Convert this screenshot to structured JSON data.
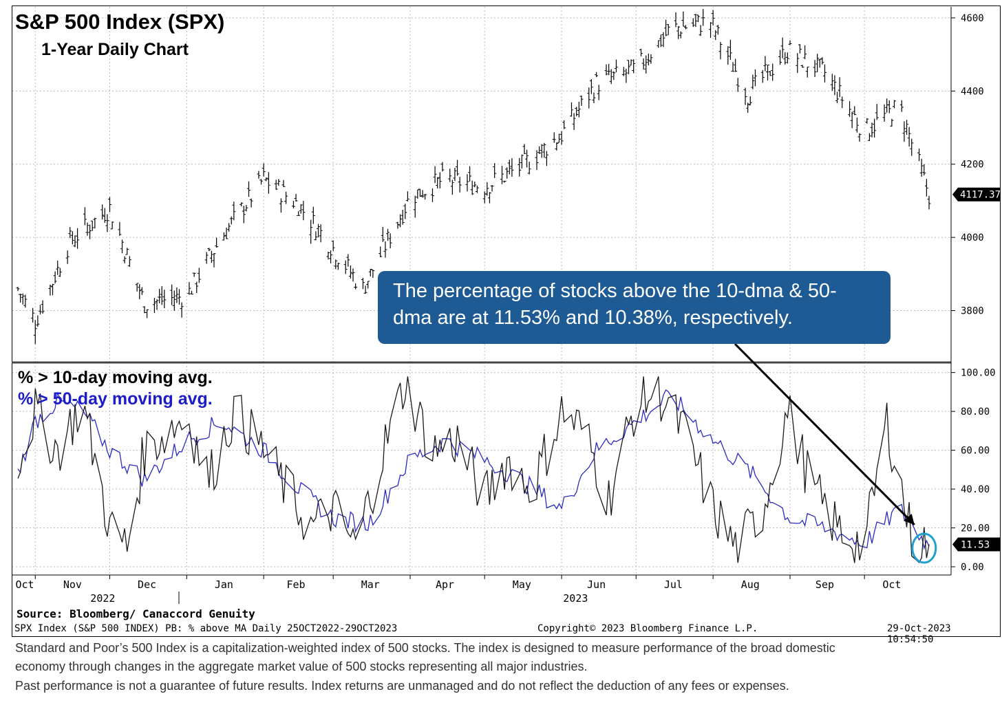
{
  "title": "S&P 500 Index (SPX)",
  "subtitle": "1-Year Daily Chart",
  "legend": {
    "ten_day": "% > 10-day moving avg.",
    "fifty_day": "% > 50-day moving avg."
  },
  "callout": "The percentage of stocks above the 10-dma & 50-dma are at 11.53% and 10.38%, respectively.",
  "source": "Source: Bloomberg/ Canaccord Genuity",
  "footer": {
    "left": "SPX Index (S&P 500 INDEX) PB: % above MA  Daily 25OCT2022-29OCT2023",
    "center": "Copyright© 2023 Bloomberg Finance L.P.",
    "right": "29-Oct-2023 10:54:50"
  },
  "disclaimer": [
    "Standard and Poor’s 500 Index is a capitalization-weighted index of 500 stocks. The index is designed to measure performance of the broad domestic",
    "economy through changes in the aggregate market value of 500 stocks representing all major industries.",
    "Past performance is not a guarantee of future results. Index returns are unmanaged and do not reflect the deduction of any fees or expenses."
  ],
  "colors": {
    "price": "#000000",
    "ten_day": "#1a1a1a",
    "fifty_day": "#2a2ac0",
    "callout_bg": "#1e5a94",
    "highlight_circle": "#1ea0d0"
  },
  "chart_data": [
    {
      "type": "line",
      "title": "S&P 500 Index (SPX)",
      "subtitle": "1-Year Daily Chart",
      "style": "ohlc bars",
      "x": [
        "2022-10-25",
        "2022-11-01",
        "2022-11-15",
        "2022-12-01",
        "2022-12-15",
        "2023-01-01",
        "2023-01-15",
        "2023-02-01",
        "2023-02-15",
        "2023-03-01",
        "2023-03-13",
        "2023-04-01",
        "2023-04-15",
        "2023-05-01",
        "2023-05-15",
        "2023-06-01",
        "2023-06-15",
        "2023-07-01",
        "2023-07-15",
        "2023-07-31",
        "2023-08-15",
        "2023-08-31",
        "2023-09-15",
        "2023-10-01",
        "2023-10-15",
        "2023-10-27"
      ],
      "y": [
        3860,
        3770,
        3990,
        4080,
        3820,
        3840,
        4000,
        4160,
        4090,
        3970,
        3860,
        4110,
        4160,
        4140,
        4190,
        4280,
        4420,
        4460,
        4570,
        4590,
        4390,
        4510,
        4450,
        4290,
        4360,
        4117.37
      ],
      "last_value": "4117.37",
      "ylim": [
        3660,
        4630
      ],
      "yticks": [
        3800,
        4000,
        4200,
        4400,
        4600
      ],
      "grid": true
    },
    {
      "type": "line",
      "series": [
        {
          "name": "% > 10-day moving avg.",
          "x": [
            "2022-10-25",
            "2022-11-01",
            "2022-11-10",
            "2022-11-20",
            "2022-12-01",
            "2022-12-08",
            "2022-12-15",
            "2023-01-01",
            "2023-01-10",
            "2023-01-20",
            "2023-02-01",
            "2023-02-10",
            "2023-02-20",
            "2023-03-01",
            "2023-03-10",
            "2023-03-20",
            "2023-03-30",
            "2023-04-10",
            "2023-04-20",
            "2023-05-01",
            "2023-05-10",
            "2023-05-20",
            "2023-06-01",
            "2023-06-10",
            "2023-06-20",
            "2023-07-01",
            "2023-07-10",
            "2023-07-20",
            "2023-08-01",
            "2023-08-10",
            "2023-08-20",
            "2023-08-31",
            "2023-09-10",
            "2023-09-20",
            "2023-10-01",
            "2023-10-10",
            "2023-10-20",
            "2023-10-27"
          ],
          "values": [
            55,
            80,
            60,
            85,
            20,
            10,
            60,
            78,
            45,
            80,
            60,
            40,
            20,
            30,
            10,
            55,
            95,
            60,
            65,
            35,
            55,
            40,
            80,
            70,
            35,
            85,
            90,
            70,
            30,
            10,
            25,
            80,
            40,
            20,
            10,
            75,
            15,
            11.53
          ],
          "last_value": "11.53"
        },
        {
          "name": "% > 50-day moving avg.",
          "x": [
            "2022-10-25",
            "2022-11-01",
            "2022-11-10",
            "2022-11-20",
            "2022-12-01",
            "2022-12-15",
            "2023-01-01",
            "2023-01-15",
            "2023-02-01",
            "2023-02-15",
            "2023-03-01",
            "2023-03-15",
            "2023-04-01",
            "2023-04-15",
            "2023-05-01",
            "2023-05-15",
            "2023-06-01",
            "2023-06-15",
            "2023-07-01",
            "2023-07-15",
            "2023-08-01",
            "2023-08-15",
            "2023-09-01",
            "2023-09-15",
            "2023-10-01",
            "2023-10-15",
            "2023-10-27"
          ],
          "values": [
            48,
            75,
            85,
            80,
            60,
            45,
            65,
            75,
            60,
            40,
            25,
            22,
            55,
            65,
            55,
            45,
            30,
            60,
            75,
            88,
            65,
            50,
            25,
            20,
            12,
            30,
            10.38
          ]
        }
      ],
      "ylim": [
        0,
        102
      ],
      "yticks": [
        0,
        20,
        40,
        60,
        80,
        100
      ],
      "ytick_labels": [
        "0.00",
        "20.00",
        "40.00",
        "60.00",
        "80.00",
        "100.00"
      ],
      "xtick_labels": [
        "Oct",
        "Nov",
        "Dec",
        "Jan",
        "Feb",
        "Mar",
        "Apr",
        "May",
        "Jun",
        "Jul",
        "Aug",
        "Sep",
        "Oct"
      ],
      "year_labels": [
        "2022",
        "2023"
      ],
      "grid": true,
      "legend_position": "top-left"
    }
  ]
}
